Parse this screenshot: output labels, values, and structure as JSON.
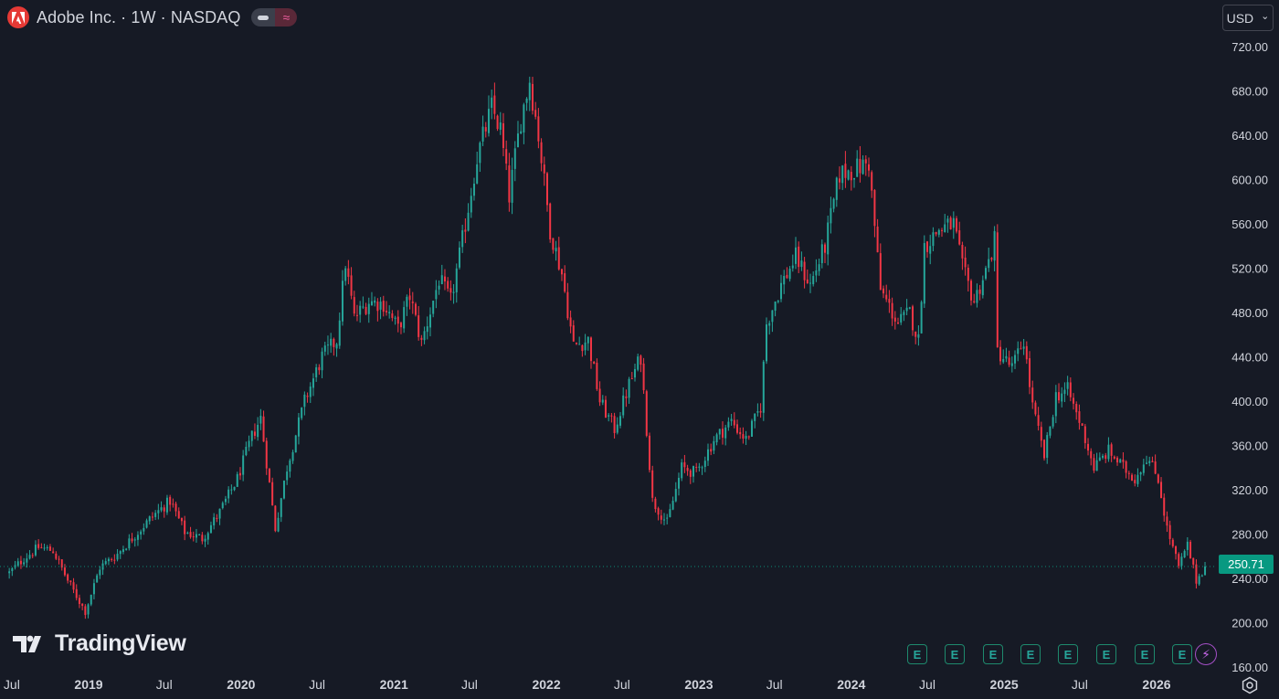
{
  "header": {
    "title": "Adobe Inc. · 1W · NASDAQ",
    "toggle_b_glyph": "≈"
  },
  "logo": {
    "icon": "adobe-logo-icon",
    "color": "#e53935"
  },
  "currency": {
    "label": "USD",
    "chevron": "⌄"
  },
  "watermark": {
    "text": "TradingView"
  },
  "last_price": {
    "value": "250.71",
    "color": "#089981"
  },
  "earnings": {
    "label": "E",
    "count": 8,
    "color": "#26a69a"
  },
  "dividends": {
    "icon": "lightning-icon",
    "glyph": "⚡",
    "color": "#c566e8"
  },
  "colors": {
    "up": "#26a69a",
    "down": "#f23645",
    "background": "#161a25",
    "axis_text": "#d1d4dc"
  },
  "chart_data": {
    "type": "candlestick",
    "title": "Adobe Inc. · 1W · NASDAQ",
    "interval": "1W",
    "currency": "USD",
    "y_axis": {
      "side": "right",
      "ticks": [
        "720.00",
        "680.00",
        "640.00",
        "600.00",
        "560.00",
        "520.00",
        "480.00",
        "440.00",
        "400.00",
        "360.00",
        "320.00",
        "280.00",
        "240.00",
        "200.00",
        "160.00"
      ],
      "ylim": [
        160,
        730
      ]
    },
    "x_axis": {
      "ticks": [
        "Jul",
        "2019",
        "Jul",
        "2020",
        "Jul",
        "2021",
        "Jul",
        "2022",
        "Jul",
        "2023",
        "Jul",
        "2024",
        "Jul",
        "2025",
        "Jul",
        "2026"
      ],
      "range": [
        "2018-06",
        "2026-05"
      ]
    },
    "grid": false,
    "last_price": 250.71,
    "anchors": [
      [
        "2018-06-25",
        245
      ],
      [
        "2018-07-30",
        258
      ],
      [
        "2018-09-03",
        268
      ],
      [
        "2018-10-08",
        265
      ],
      [
        "2018-11-12",
        238
      ],
      [
        "2018-12-24",
        210
      ],
      [
        "2019-01-28",
        250
      ],
      [
        "2019-03-11",
        262
      ],
      [
        "2019-04-29",
        282
      ],
      [
        "2019-06-03",
        296
      ],
      [
        "2019-07-15",
        310
      ],
      [
        "2019-08-19",
        282
      ],
      [
        "2019-09-30",
        276
      ],
      [
        "2019-11-11",
        300
      ],
      [
        "2019-12-23",
        330
      ],
      [
        "2020-01-27",
        368
      ],
      [
        "2020-02-17",
        385
      ],
      [
        "2020-03-09",
        325
      ],
      [
        "2020-03-23",
        285
      ],
      [
        "2020-04-20",
        340
      ],
      [
        "2020-06-01",
        400
      ],
      [
        "2020-07-13",
        440
      ],
      [
        "2020-08-17",
        455
      ],
      [
        "2020-09-07",
        525
      ],
      [
        "2020-09-28",
        475
      ],
      [
        "2020-11-02",
        490
      ],
      [
        "2020-12-07",
        488
      ],
      [
        "2021-01-11",
        465
      ],
      [
        "2021-02-08",
        495
      ],
      [
        "2021-03-08",
        452
      ],
      [
        "2021-04-19",
        510
      ],
      [
        "2021-05-17",
        490
      ],
      [
        "2021-06-14",
        545
      ],
      [
        "2021-07-19",
        620
      ],
      [
        "2021-08-23",
        665
      ],
      [
        "2021-09-13",
        645
      ],
      [
        "2021-10-04",
        585
      ],
      [
        "2021-11-01",
        655
      ],
      [
        "2021-11-22",
        690
      ],
      [
        "2021-12-13",
        640
      ],
      [
        "2022-01-10",
        555
      ],
      [
        "2022-02-07",
        515
      ],
      [
        "2022-03-07",
        450
      ],
      [
        "2022-04-11",
        455
      ],
      [
        "2022-05-09",
        400
      ],
      [
        "2022-06-13",
        375
      ],
      [
        "2022-07-18",
        415
      ],
      [
        "2022-08-15",
        440
      ],
      [
        "2022-09-12",
        310
      ],
      [
        "2022-10-17",
        290
      ],
      [
        "2022-11-21",
        340
      ],
      [
        "2022-12-26",
        335
      ],
      [
        "2023-02-06",
        365
      ],
      [
        "2023-03-20",
        382
      ],
      [
        "2023-04-24",
        365
      ],
      [
        "2023-05-29",
        395
      ],
      [
        "2023-06-12",
        470
      ],
      [
        "2023-07-17",
        505
      ],
      [
        "2023-08-21",
        530
      ],
      [
        "2023-09-25",
        505
      ],
      [
        "2023-10-30",
        540
      ],
      [
        "2023-12-04",
        605
      ],
      [
        "2024-01-15",
        610
      ],
      [
        "2024-02-12",
        615
      ],
      [
        "2024-03-11",
        500
      ],
      [
        "2024-04-22",
        470
      ],
      [
        "2024-05-20",
        480
      ],
      [
        "2024-06-10",
        455
      ],
      [
        "2024-06-24",
        540
      ],
      [
        "2024-07-29",
        555
      ],
      [
        "2024-09-02",
        560
      ],
      [
        "2024-09-23",
        520
      ],
      [
        "2024-10-21",
        490
      ],
      [
        "2024-11-25",
        525
      ],
      [
        "2024-12-09",
        545
      ],
      [
        "2024-12-16",
        445
      ],
      [
        "2025-01-20",
        430
      ],
      [
        "2025-02-17",
        455
      ],
      [
        "2025-03-10",
        395
      ],
      [
        "2025-04-07",
        350
      ],
      [
        "2025-05-05",
        405
      ],
      [
        "2025-06-02",
        410
      ],
      [
        "2025-07-07",
        375
      ],
      [
        "2025-08-04",
        340
      ],
      [
        "2025-09-08",
        355
      ],
      [
        "2025-10-13",
        340
      ],
      [
        "2025-11-10",
        330
      ],
      [
        "2025-12-08",
        350
      ],
      [
        "2026-01-05",
        330
      ],
      [
        "2026-01-26",
        285
      ],
      [
        "2026-02-23",
        250
      ],
      [
        "2026-03-16",
        270
      ],
      [
        "2026-04-06",
        238
      ],
      [
        "2026-04-27",
        250.71
      ]
    ]
  }
}
